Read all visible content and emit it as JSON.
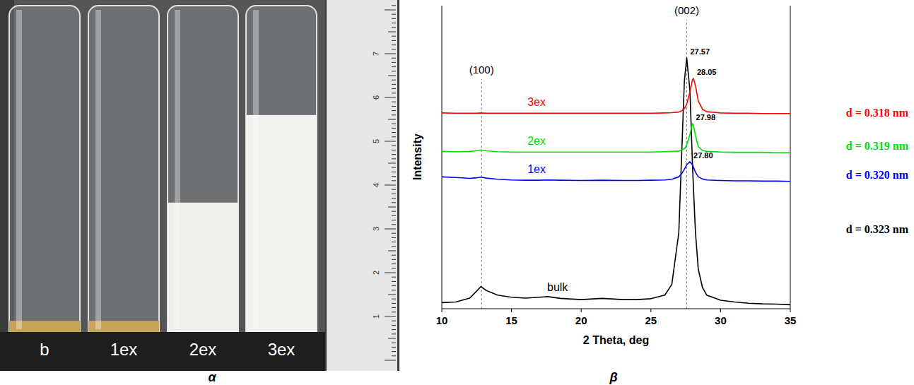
{
  "panel_labels": [
    "α",
    "β"
  ],
  "photo": {
    "tubes": [
      {
        "label": "b",
        "level": 0.9,
        "color": "#c7a357"
      },
      {
        "label": "1ex",
        "level": 0.9,
        "color": "#c9a65c"
      },
      {
        "label": "2ex",
        "level": 3.6,
        "color": "#eeeeea"
      },
      {
        "label": "3ex",
        "level": 5.6,
        "color": "#f2f2ee"
      }
    ],
    "ruler_labels": [
      1,
      2,
      3,
      4,
      5,
      6,
      7
    ]
  },
  "chart_data": {
    "type": "line",
    "x_label": "2 Theta, deg",
    "y_label": "Intensity",
    "xlim": [
      10,
      35
    ],
    "xticks": [
      10,
      15,
      20,
      25,
      30,
      35
    ],
    "ylim": [
      0,
      100
    ],
    "yticks": [],
    "tick_labels": "x",
    "grid": false,
    "x": [
      10,
      11,
      12,
      12.5,
      12.8,
      13.2,
      14,
      15,
      16,
      17,
      17.6,
      18.5,
      20,
      21.5,
      23,
      24,
      25,
      26,
      26.5,
      27,
      27.2,
      27.4,
      27.57,
      27.8,
      27.98,
      28.05,
      28.2,
      28.4,
      28.7,
      29,
      30,
      31,
      32,
      33,
      34,
      35
    ],
    "series": [
      {
        "name": "bulk",
        "color": "#000000",
        "values": [
          2.0,
          2.2,
          3.5,
          5.8,
          7.3,
          6.0,
          4.5,
          3.8,
          3.5,
          3.8,
          4.0,
          3.4,
          3.0,
          3.4,
          3.0,
          3.0,
          3.3,
          4.5,
          8.0,
          25.0,
          50.0,
          75.0,
          82.8,
          72.0,
          48.0,
          40.0,
          25.0,
          13.0,
          7.0,
          4.5,
          2.8,
          2.2,
          1.8,
          1.6,
          1.5,
          1.3
        ]
      },
      {
        "name": "1ex",
        "color": "#0000ff",
        "values": [
          43.5,
          43.3,
          43.0,
          43.2,
          43.4,
          43.1,
          42.7,
          42.5,
          42.4,
          42.4,
          42.5,
          42.4,
          42.3,
          42.4,
          42.3,
          42.3,
          42.4,
          42.5,
          42.7,
          43.5,
          44.5,
          46.0,
          47.5,
          48.5,
          47.5,
          46.8,
          45.0,
          43.5,
          42.8,
          42.5,
          42.3,
          42.2,
          42.2,
          42.1,
          42.1,
          42.0
        ]
      },
      {
        "name": "2ex",
        "color": "#00e000",
        "values": [
          51.9,
          51.8,
          51.9,
          52.1,
          52.4,
          52.1,
          51.8,
          51.7,
          51.7,
          51.7,
          51.7,
          51.7,
          51.7,
          51.7,
          51.7,
          51.7,
          51.7,
          51.8,
          51.9,
          52.0,
          52.3,
          52.8,
          54.0,
          57.5,
          61.1,
          60.6,
          57.0,
          53.5,
          52.2,
          51.9,
          51.7,
          51.6,
          51.6,
          51.6,
          51.5,
          51.5
        ]
      },
      {
        "name": "3ex",
        "color": "#ff0000",
        "values": [
          64.6,
          64.5,
          64.5,
          64.5,
          64.6,
          64.5,
          64.5,
          64.5,
          64.5,
          64.5,
          64.5,
          64.5,
          64.5,
          64.5,
          64.5,
          64.5,
          64.5,
          64.6,
          64.7,
          64.9,
          65.3,
          66.0,
          67.5,
          71.5,
          75.5,
          76.0,
          73.5,
          68.5,
          65.8,
          65.0,
          64.6,
          64.5,
          64.5,
          64.4,
          64.4,
          64.4
        ]
      }
    ],
    "peak_labels": [
      {
        "x": 27.57,
        "y": 82.8,
        "text": "27.57"
      },
      {
        "x": 27.8,
        "y": 48.5,
        "text": "27.80"
      },
      {
        "x": 27.98,
        "y": 61.1,
        "text": "27.98"
      },
      {
        "x": 28.05,
        "y": 76.0,
        "text": "28.05"
      }
    ],
    "d_labels": [
      "d = 0.323 nm",
      "d = 0.320 nm",
      "d = 0.319 nm",
      "d = 0.318 nm"
    ],
    "reference_lines": [
      {
        "x": 12.85,
        "label": "(100)"
      },
      {
        "x": 27.57,
        "label": "(002)"
      }
    ]
  }
}
